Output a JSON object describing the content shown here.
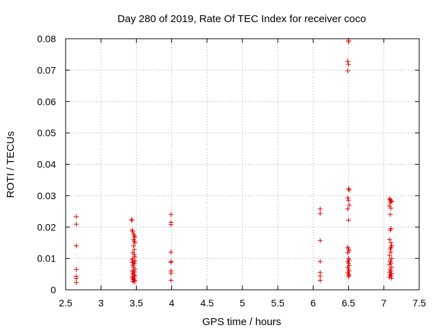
{
  "chart_data": {
    "type": "scatter",
    "title": "Day 280 of 2019, Rate Of TEC Index for receiver coco",
    "xlabel": "GPS time / hours",
    "ylabel": "ROTI / TECUs",
    "xlim": [
      2.5,
      7.5
    ],
    "ylim": [
      0,
      0.08
    ],
    "xticks": [
      "2.5",
      "3",
      "3.5",
      "4",
      "4.5",
      "5",
      "5.5",
      "6",
      "6.5",
      "7",
      "7.5"
    ],
    "yticks": [
      "0",
      "0.01",
      "0.02",
      "0.03",
      "0.04",
      "0.05",
      "0.06",
      "0.07",
      "0.08"
    ],
    "grid": true,
    "marker": "+",
    "color": "#e00000",
    "series": [
      {
        "name": "ROTI",
        "points": [
          [
            2.65,
            0.0233
          ],
          [
            2.65,
            0.0209
          ],
          [
            2.65,
            0.014
          ],
          [
            2.65,
            0.0065
          ],
          [
            2.65,
            0.0043
          ],
          [
            2.65,
            0.0036
          ],
          [
            2.65,
            0.0023
          ],
          [
            3.43,
            0.0223
          ],
          [
            3.44,
            0.0222
          ],
          [
            3.44,
            0.019
          ],
          [
            3.45,
            0.0185
          ],
          [
            3.46,
            0.0178
          ],
          [
            3.47,
            0.0172
          ],
          [
            3.48,
            0.0168
          ],
          [
            3.46,
            0.016
          ],
          [
            3.47,
            0.0155
          ],
          [
            3.48,
            0.015
          ],
          [
            3.46,
            0.014
          ],
          [
            3.47,
            0.0128
          ],
          [
            3.45,
            0.0118
          ],
          [
            3.47,
            0.0112
          ],
          [
            3.48,
            0.0105
          ],
          [
            3.44,
            0.0095
          ],
          [
            3.46,
            0.0088
          ],
          [
            3.47,
            0.0083
          ],
          [
            3.45,
            0.0078
          ],
          [
            3.46,
            0.0072
          ],
          [
            3.48,
            0.0066
          ],
          [
            3.44,
            0.006
          ],
          [
            3.47,
            0.0056
          ],
          [
            3.45,
            0.0052
          ],
          [
            3.46,
            0.0048
          ],
          [
            3.48,
            0.0045
          ],
          [
            3.44,
            0.0041
          ],
          [
            3.47,
            0.0038
          ],
          [
            3.45,
            0.0035
          ],
          [
            3.46,
            0.0032
          ],
          [
            3.48,
            0.003
          ],
          [
            3.45,
            0.0027
          ],
          [
            3.47,
            0.0025
          ],
          [
            3.46,
            0.006
          ],
          [
            3.44,
            0.0087
          ],
          [
            3.48,
            0.0092
          ],
          [
            3.45,
            0.01
          ],
          [
            3.99,
            0.024
          ],
          [
            3.99,
            0.0215
          ],
          [
            3.99,
            0.0208
          ],
          [
            3.99,
            0.012
          ],
          [
            3.99,
            0.009
          ],
          [
            3.99,
            0.0088
          ],
          [
            3.99,
            0.006
          ],
          [
            3.99,
            0.0053
          ],
          [
            3.99,
            0.003
          ],
          [
            6.1,
            0.0258
          ],
          [
            6.1,
            0.0243
          ],
          [
            6.1,
            0.0157
          ],
          [
            6.1,
            0.009
          ],
          [
            6.1,
            0.0055
          ],
          [
            6.1,
            0.0044
          ],
          [
            6.1,
            0.003
          ],
          [
            6.5,
            0.0795
          ],
          [
            6.5,
            0.079
          ],
          [
            6.49,
            0.0728
          ],
          [
            6.5,
            0.0718
          ],
          [
            6.49,
            0.0698
          ],
          [
            6.5,
            0.0322
          ],
          [
            6.51,
            0.0318
          ],
          [
            6.49,
            0.0293
          ],
          [
            6.5,
            0.0285
          ],
          [
            6.51,
            0.027
          ],
          [
            6.49,
            0.0258
          ],
          [
            6.5,
            0.0222
          ],
          [
            6.49,
            0.0135
          ],
          [
            6.5,
            0.013
          ],
          [
            6.51,
            0.0124
          ],
          [
            6.49,
            0.0118
          ],
          [
            6.5,
            0.01
          ],
          [
            6.51,
            0.0095
          ],
          [
            6.49,
            0.009
          ],
          [
            6.5,
            0.0085
          ],
          [
            6.51,
            0.0078
          ],
          [
            6.49,
            0.0072
          ],
          [
            6.5,
            0.0066
          ],
          [
            6.51,
            0.006
          ],
          [
            6.49,
            0.0055
          ],
          [
            6.5,
            0.005
          ],
          [
            6.51,
            0.0046
          ],
          [
            6.5,
            0.0042
          ],
          [
            7.08,
            0.029
          ],
          [
            7.09,
            0.0287
          ],
          [
            7.1,
            0.0284
          ],
          [
            7.11,
            0.0281
          ],
          [
            7.09,
            0.0278
          ],
          [
            7.08,
            0.0267
          ],
          [
            7.1,
            0.026
          ],
          [
            7.09,
            0.024
          ],
          [
            7.1,
            0.0195
          ],
          [
            7.09,
            0.019
          ],
          [
            7.08,
            0.016
          ],
          [
            7.1,
            0.015
          ],
          [
            7.11,
            0.014
          ],
          [
            7.09,
            0.013
          ],
          [
            7.1,
            0.012
          ],
          [
            7.08,
            0.011
          ],
          [
            7.11,
            0.01
          ],
          [
            7.09,
            0.0095
          ],
          [
            7.1,
            0.0085
          ],
          [
            7.08,
            0.008
          ],
          [
            7.11,
            0.0072
          ],
          [
            7.09,
            0.0066
          ],
          [
            7.1,
            0.006
          ],
          [
            7.08,
            0.0056
          ],
          [
            7.11,
            0.0052
          ],
          [
            7.09,
            0.0048
          ],
          [
            7.1,
            0.0044
          ],
          [
            7.08,
            0.004
          ],
          [
            7.11,
            0.0037
          ],
          [
            7.09,
            0.009
          ],
          [
            7.1,
            0.0135
          ]
        ]
      }
    ]
  }
}
